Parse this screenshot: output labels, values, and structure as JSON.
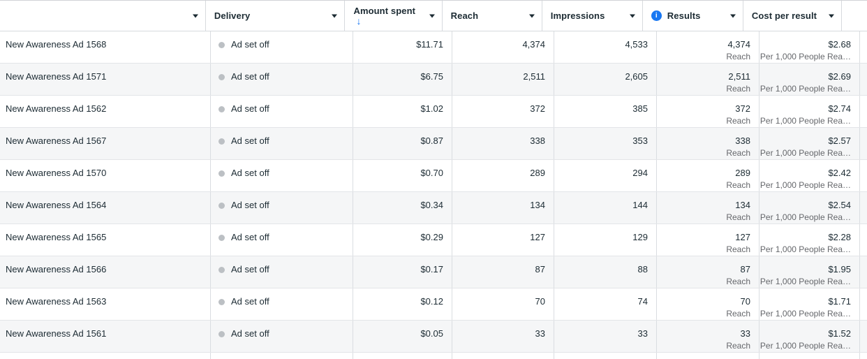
{
  "table": {
    "columns": {
      "name": {
        "label": ""
      },
      "delivery": {
        "label": "Delivery"
      },
      "amount_spent": {
        "label": "Amount spent",
        "sort": "descending"
      },
      "reach": {
        "label": "Reach"
      },
      "impressions": {
        "label": "Impressions"
      },
      "results": {
        "label": "Results",
        "has_info_icon": true
      },
      "cost_per_result": {
        "label": "Cost per result"
      }
    },
    "icons": {
      "sort_descending": "↓",
      "info": "i"
    },
    "colors": {
      "accent_blue": "#1877F2",
      "status_dot": "#BCC0C4",
      "secondary_text": "#65676B",
      "alt_row_background": "#F5F6F7",
      "grid_border": "#DADDE1"
    },
    "rows": [
      {
        "name": "New Awareness Ad 1568",
        "delivery": "Ad set off",
        "amount_spent": "$11.71",
        "reach": "4,374",
        "impressions": "4,533",
        "results": "4,374",
        "results_type": "Reach",
        "cost_per_result": "$2.68",
        "cost_basis": "Per 1,000 People Rea…"
      },
      {
        "name": "New Awareness Ad 1571",
        "delivery": "Ad set off",
        "amount_spent": "$6.75",
        "reach": "2,511",
        "impressions": "2,605",
        "results": "2,511",
        "results_type": "Reach",
        "cost_per_result": "$2.69",
        "cost_basis": "Per 1,000 People Rea…"
      },
      {
        "name": "New Awareness Ad 1562",
        "delivery": "Ad set off",
        "amount_spent": "$1.02",
        "reach": "372",
        "impressions": "385",
        "results": "372",
        "results_type": "Reach",
        "cost_per_result": "$2.74",
        "cost_basis": "Per 1,000 People Rea…"
      },
      {
        "name": "New Awareness Ad 1567",
        "delivery": "Ad set off",
        "amount_spent": "$0.87",
        "reach": "338",
        "impressions": "353",
        "results": "338",
        "results_type": "Reach",
        "cost_per_result": "$2.57",
        "cost_basis": "Per 1,000 People Rea…"
      },
      {
        "name": "New Awareness Ad 1570",
        "delivery": "Ad set off",
        "amount_spent": "$0.70",
        "reach": "289",
        "impressions": "294",
        "results": "289",
        "results_type": "Reach",
        "cost_per_result": "$2.42",
        "cost_basis": "Per 1,000 People Rea…"
      },
      {
        "name": "New Awareness Ad 1564",
        "delivery": "Ad set off",
        "amount_spent": "$0.34",
        "reach": "134",
        "impressions": "144",
        "results": "134",
        "results_type": "Reach",
        "cost_per_result": "$2.54",
        "cost_basis": "Per 1,000 People Rea…"
      },
      {
        "name": "New Awareness Ad 1565",
        "delivery": "Ad set off",
        "amount_spent": "$0.29",
        "reach": "127",
        "impressions": "129",
        "results": "127",
        "results_type": "Reach",
        "cost_per_result": "$2.28",
        "cost_basis": "Per 1,000 People Rea…"
      },
      {
        "name": "New Awareness Ad 1566",
        "delivery": "Ad set off",
        "amount_spent": "$0.17",
        "reach": "87",
        "impressions": "88",
        "results": "87",
        "results_type": "Reach",
        "cost_per_result": "$1.95",
        "cost_basis": "Per 1,000 People Rea…"
      },
      {
        "name": "New Awareness Ad 1563",
        "delivery": "Ad set off",
        "amount_spent": "$0.12",
        "reach": "70",
        "impressions": "74",
        "results": "70",
        "results_type": "Reach",
        "cost_per_result": "$1.71",
        "cost_basis": "Per 1,000 People Rea…"
      },
      {
        "name": "New Awareness Ad 1561",
        "delivery": "Ad set off",
        "amount_spent": "$0.05",
        "reach": "33",
        "impressions": "33",
        "results": "33",
        "results_type": "Reach",
        "cost_per_result": "$1.52",
        "cost_basis": "Per 1,000 People Rea…"
      }
    ]
  }
}
